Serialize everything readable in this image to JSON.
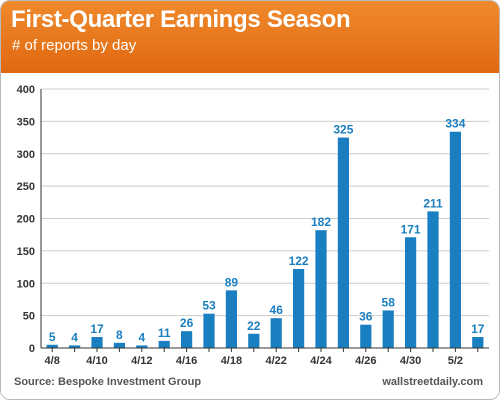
{
  "header": {
    "title": "First-Quarter Earnings Season",
    "subtitle": "# of reports by day"
  },
  "footer": {
    "source": "Source: Bespoke Investment Group",
    "credit": "wallstreetdaily.com"
  },
  "colors": {
    "header": "#e8751c",
    "bar": "#1a7fc0",
    "label": "#1a7fc0",
    "axis": "#333333",
    "grid": "#cccccc"
  },
  "chart_data": {
    "type": "bar",
    "title": "First-Quarter Earnings Season",
    "subtitle": "# of reports by day",
    "x_ticks": [
      "4/8",
      "4/10",
      "4/12",
      "4/16",
      "4/18",
      "4/22",
      "4/24",
      "4/26",
      "4/30",
      "5/2"
    ],
    "bars": [
      {
        "value": 5,
        "tick": "4/8"
      },
      {
        "value": 4,
        "tick": ""
      },
      {
        "value": 17,
        "tick": "4/10"
      },
      {
        "value": 8,
        "tick": ""
      },
      {
        "value": 4,
        "tick": "4/12"
      },
      {
        "value": 11,
        "tick": ""
      },
      {
        "value": 26,
        "tick": "4/16"
      },
      {
        "value": 53,
        "tick": ""
      },
      {
        "value": 89,
        "tick": "4/18"
      },
      {
        "value": 22,
        "tick": ""
      },
      {
        "value": 46,
        "tick": "4/22"
      },
      {
        "value": 122,
        "tick": ""
      },
      {
        "value": 182,
        "tick": "4/24"
      },
      {
        "value": 325,
        "tick": ""
      },
      {
        "value": 36,
        "tick": "4/26"
      },
      {
        "value": 58,
        "tick": ""
      },
      {
        "value": 171,
        "tick": "4/30"
      },
      {
        "value": 211,
        "tick": ""
      },
      {
        "value": 334,
        "tick": "5/2"
      },
      {
        "value": 17,
        "tick": ""
      }
    ],
    "y_ticks": [
      0,
      50,
      100,
      150,
      200,
      250,
      300,
      350,
      400
    ],
    "ylim": [
      0,
      400
    ],
    "grid": true,
    "legend": "none"
  }
}
